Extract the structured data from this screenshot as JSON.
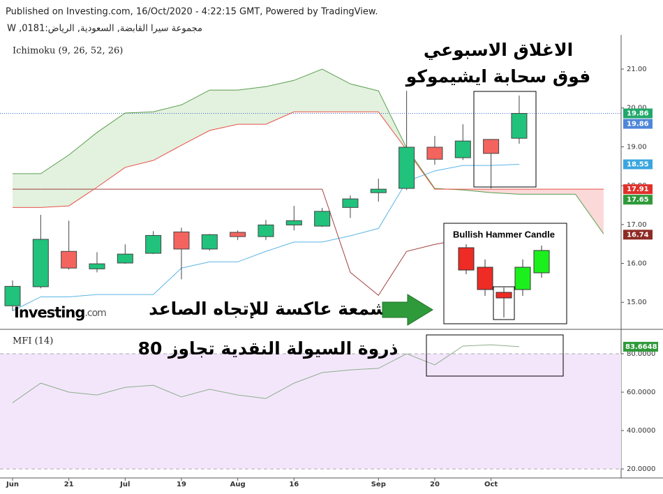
{
  "chart_data": {
    "type": "candlestick",
    "published": "Published on Investing.com, 16/Oct/2020 - 4:22:15 GMT, Powered by TradingView.",
    "instrument": "مجموعة سيرا القابضة, السعودية, الرياض:0181, W",
    "indicator_label": "Ichimoku (9, 26, 52, 26)",
    "logo_main": "Investing",
    "logo_suffix": ".com",
    "annotations": [
      "الاغلاق الاسبوعي",
      "فوق سحابة ايشيموكو",
      "شمعة عاكسة للإتجاه الصاعد",
      "Bullish Hammer Candle"
    ],
    "categories": [
      "Jun",
      null,
      "21",
      null,
      "Jul",
      null,
      "19",
      null,
      "Aug",
      null,
      "16",
      null,
      null,
      "Sep",
      null,
      "20",
      null,
      "Oct",
      null,
      null,
      null,
      null
    ],
    "up_color": "#21c27c",
    "down_color": "#f4645f",
    "open": [
      14.91,
      15.4,
      16.31,
      15.86,
      16.01,
      16.26,
      16.81,
      16.37,
      16.8,
      16.69,
      16.99,
      16.96,
      17.44,
      17.82,
      17.93,
      18.99,
      18.72,
      19.19,
      19.22,
      null,
      null,
      null
    ],
    "high": [
      15.56,
      17.25,
      17.1,
      16.29,
      16.49,
      16.83,
      16.92,
      16.76,
      16.85,
      17.12,
      17.48,
      17.43,
      17.75,
      18.18,
      20.44,
      19.28,
      19.58,
      19.2,
      20.32,
      null,
      null,
      null
    ],
    "low": [
      14.78,
      15.36,
      15.84,
      15.77,
      15.99,
      16.24,
      15.59,
      16.33,
      16.6,
      16.6,
      16.85,
      16.94,
      17.17,
      17.59,
      17.89,
      18.54,
      18.66,
      17.93,
      19.08,
      null,
      null,
      null
    ],
    "close": [
      15.41,
      16.62,
      15.88,
      15.99,
      16.24,
      16.72,
      16.37,
      16.74,
      16.69,
      16.99,
      17.1,
      17.34,
      17.66,
      17.91,
      18.99,
      18.68,
      19.15,
      18.83,
      19.86,
      null,
      null,
      null
    ],
    "lines": [
      {
        "color": "#5ab4e6",
        "values": [
          14.78,
          15.14,
          15.14,
          15.2,
          15.2,
          15.2,
          15.88,
          16.04,
          16.04,
          16.31,
          16.55,
          16.55,
          16.71,
          16.9,
          18.11,
          18.38,
          18.52,
          18.52,
          18.55,
          null,
          null,
          null
        ]
      },
      {
        "color": "#a0413c",
        "values": [
          17.91,
          17.91,
          17.91,
          17.91,
          17.91,
          17.91,
          17.91,
          17.91,
          17.91,
          17.91,
          17.91,
          17.91,
          15.77,
          15.18,
          16.31,
          16.49,
          16.62,
          16.69,
          16.74,
          null,
          null,
          null
        ]
      },
      {
        "color": "#5a9e4e",
        "values": [
          18.31,
          18.31,
          18.79,
          19.37,
          19.87,
          19.9,
          20.08,
          20.46,
          20.46,
          20.55,
          20.71,
          21.0,
          20.62,
          20.44,
          18.97,
          17.93,
          17.89,
          17.82,
          17.78,
          17.78,
          17.78,
          16.76
        ]
      },
      {
        "color": "#e8524a",
        "values": [
          17.44,
          17.44,
          17.48,
          17.96,
          18.47,
          18.65,
          19.04,
          19.42,
          19.58,
          19.58,
          19.9,
          19.9,
          19.9,
          19.9,
          18.92,
          17.91,
          17.91,
          17.91,
          17.91,
          17.91,
          17.91,
          17.91
        ]
      }
    ],
    "cloud_up_color": "#e3f1df",
    "cloud_down_color": "#fbd9d9",
    "ylim": [
      14.34,
      21.88
    ],
    "yticks": [
      {
        "value": 15,
        "label": "15.00"
      },
      {
        "value": 16,
        "label": "16.00"
      },
      {
        "value": 17,
        "label": "17.00"
      },
      {
        "value": 18,
        "label": "18.00"
      },
      {
        "value": 19,
        "label": "19.00"
      },
      {
        "value": 20,
        "label": "20.00"
      },
      {
        "value": 21,
        "label": "21.00"
      }
    ],
    "current_price": 19.86,
    "price_tags": [
      {
        "value": 19.86,
        "color": "#21a86a"
      },
      {
        "value": 19.86,
        "color": "#4f86d9"
      },
      {
        "value": 18.55,
        "color": "#3aa6e0"
      },
      {
        "value": 17.91,
        "color": "#e0312b"
      },
      {
        "value": 17.65,
        "color": "#2f9a3a"
      },
      {
        "value": 16.74,
        "color": "#8e2b25"
      }
    ],
    "mfi": {
      "label": "MFI (14)",
      "annotation": "ذروة السيولة النقدية تجاوز 80",
      "color": "#8fae8c",
      "tag_color": "#2f9a3a",
      "band_color": "#f3e6fb",
      "values": [
        54.5,
        64.7,
        60.0,
        58.5,
        62.5,
        63.6,
        57.5,
        61.5,
        58.5,
        56.7,
        64.7,
        70.2,
        71.6,
        72.4,
        80.0,
        74.2,
        84.0,
        84.7,
        83.6648,
        null,
        null,
        null
      ],
      "ylim": [
        15.3,
        92
      ],
      "yticks": [
        {
          "value": 20,
          "label": "20.0000"
        },
        {
          "value": 40,
          "label": "40.0000"
        },
        {
          "value": 60,
          "label": "60.0000"
        },
        {
          "value": 80,
          "label": "80.0000"
        }
      ],
      "bands": [
        20,
        80
      ]
    }
  }
}
